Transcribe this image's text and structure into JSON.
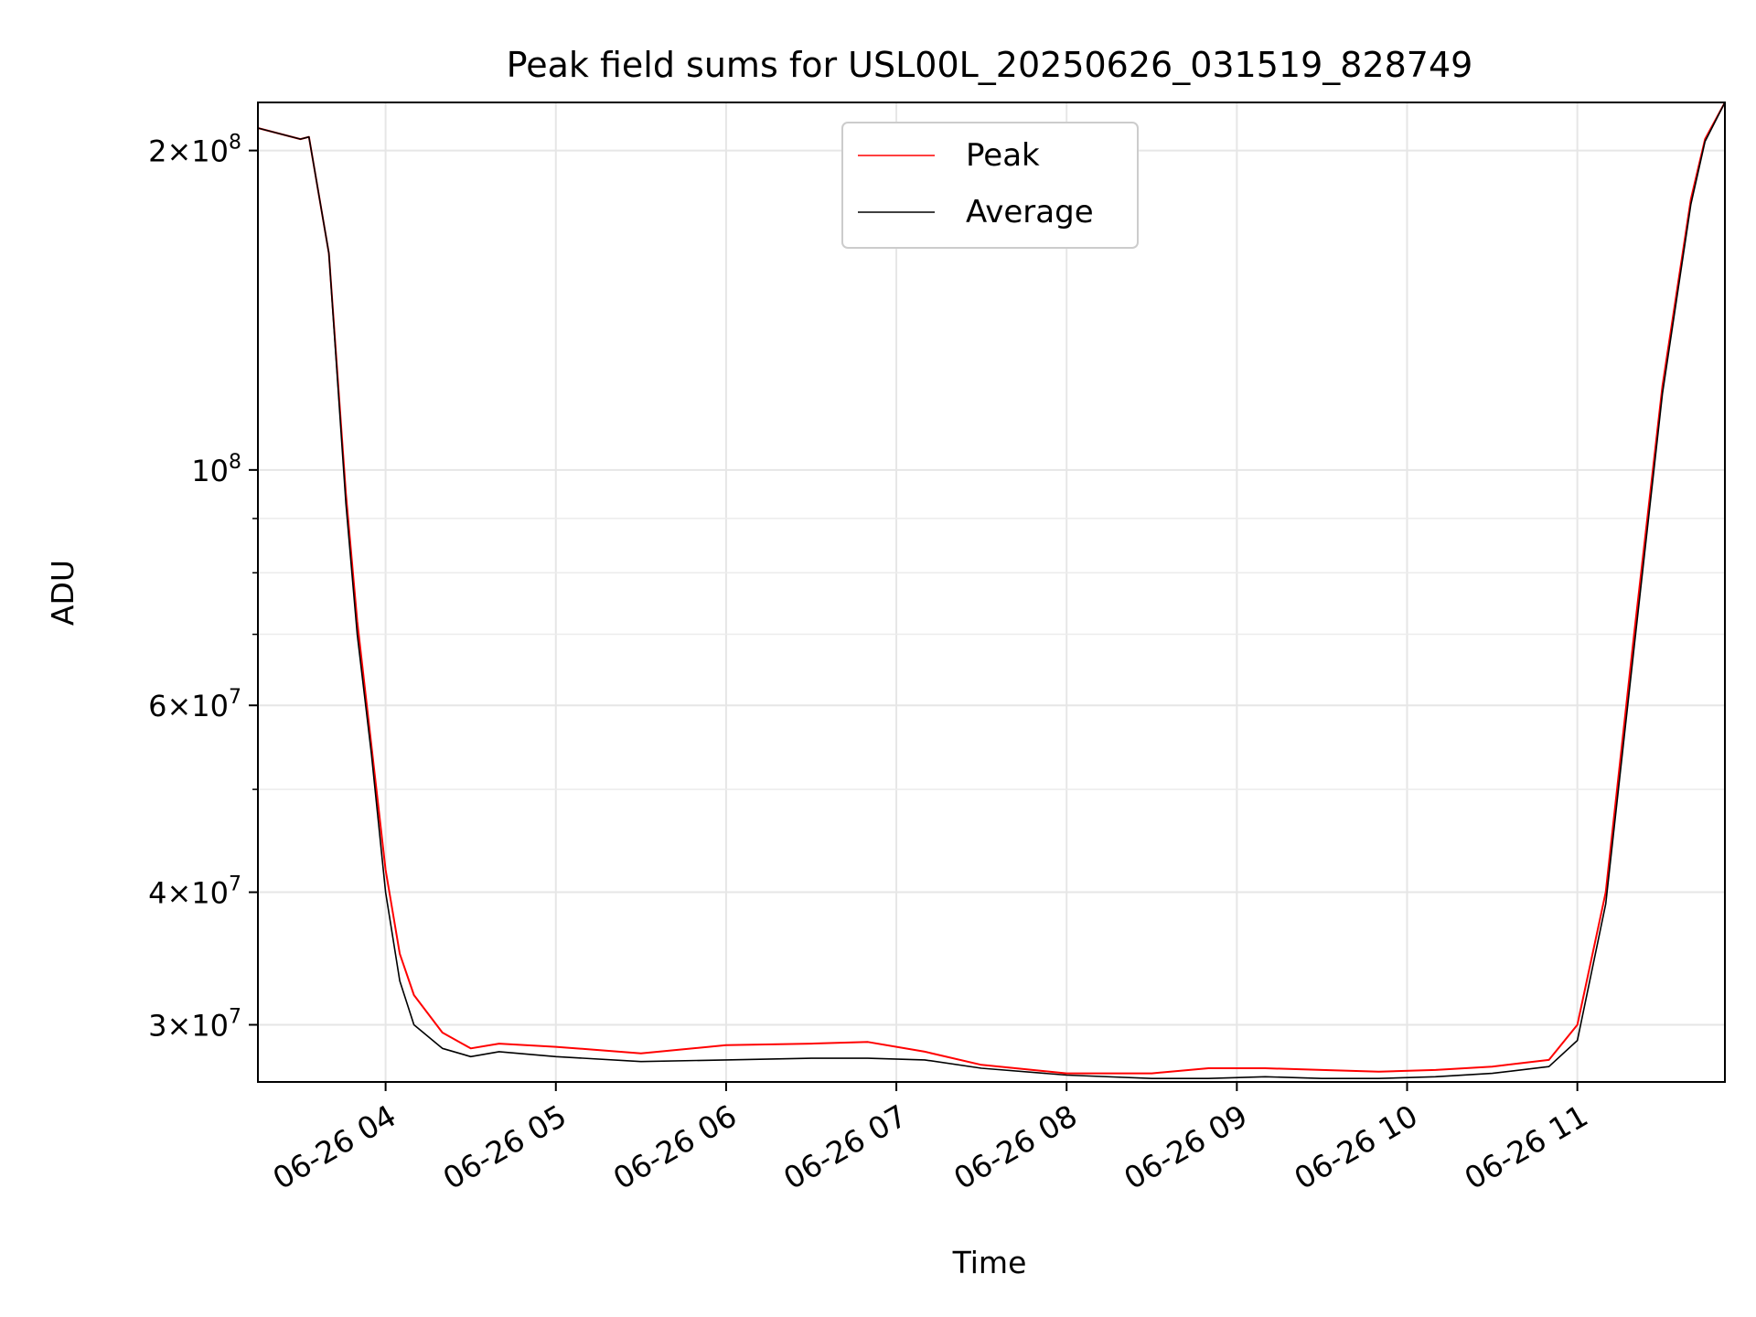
{
  "chart_data": {
    "type": "line",
    "title": "Peak field sums for USL00L_20250626_031519_828749",
    "xlabel": "Time",
    "ylabel": "ADU",
    "yscale": "log",
    "xlim": [
      "2025-06-26 03:15",
      "2025-06-26 11:52"
    ],
    "ylim": [
      26500000,
      222000000
    ],
    "x_ticks": [
      "06-26 04",
      "06-26 05",
      "06-26 06",
      "06-26 07",
      "06-26 08",
      "06-26 09",
      "06-26 10",
      "06-26 11"
    ],
    "y_ticks": [
      {
        "value": 200000000,
        "mantissa": "2×10",
        "exp": "8"
      },
      {
        "value": 100000000,
        "mantissa": "10",
        "exp": "8"
      },
      {
        "value": 60000000,
        "mantissa": "6×10",
        "exp": "7"
      },
      {
        "value": 40000000,
        "mantissa": "4×10",
        "exp": "7"
      },
      {
        "value": 30000000,
        "mantissa": "3×10",
        "exp": "7"
      }
    ],
    "grid": true,
    "legend_position": "top-center",
    "colors": {
      "Peak": "#ff0000",
      "Average": "#000000"
    },
    "series": [
      {
        "name": "Peak",
        "x": [
          "06-26 03:15",
          "06-26 03:30",
          "06-26 03:33",
          "06-26 03:40",
          "06-26 03:46",
          "06-26 03:50",
          "06-26 03:55",
          "06-26 04:00",
          "06-26 04:05",
          "06-26 04:10",
          "06-26 04:20",
          "06-26 04:30",
          "06-26 04:40",
          "06-26 05:00",
          "06-26 05:30",
          "06-26 06:00",
          "06-26 06:30",
          "06-26 06:50",
          "06-26 07:10",
          "06-26 07:30",
          "06-26 08:00",
          "06-26 08:30",
          "06-26 08:50",
          "06-26 09:10",
          "06-26 09:30",
          "06-26 09:50",
          "06-26 10:10",
          "06-26 10:30",
          "06-26 10:50",
          "06-26 11:00",
          "06-26 11:10",
          "06-26 11:20",
          "06-26 11:30",
          "06-26 11:40",
          "06-26 11:45",
          "06-26 11:52"
        ],
        "values": [
          210000000,
          205000000,
          206000000,
          160000000,
          95000000,
          72000000,
          55000000,
          42000000,
          35000000,
          32000000,
          29500000,
          28500000,
          28800000,
          28600000,
          28200000,
          28700000,
          28800000,
          28900000,
          28300000,
          27500000,
          27000000,
          27000000,
          27300000,
          27300000,
          27200000,
          27100000,
          27200000,
          27400000,
          27800000,
          30000000,
          40000000,
          70000000,
          120000000,
          180000000,
          205000000,
          222000000
        ]
      },
      {
        "name": "Average",
        "x": [
          "06-26 03:15",
          "06-26 03:30",
          "06-26 03:33",
          "06-26 03:40",
          "06-26 03:46",
          "06-26 03:50",
          "06-26 03:55",
          "06-26 04:00",
          "06-26 04:05",
          "06-26 04:10",
          "06-26 04:20",
          "06-26 04:30",
          "06-26 04:40",
          "06-26 05:00",
          "06-26 05:30",
          "06-26 06:00",
          "06-26 06:30",
          "06-26 06:50",
          "06-26 07:10",
          "06-26 07:30",
          "06-26 08:00",
          "06-26 08:30",
          "06-26 08:50",
          "06-26 09:10",
          "06-26 09:30",
          "06-26 09:50",
          "06-26 10:10",
          "06-26 10:30",
          "06-26 10:50",
          "06-26 11:00",
          "06-26 11:10",
          "06-26 11:20",
          "06-26 11:30",
          "06-26 11:40",
          "06-26 11:45",
          "06-26 11:52"
        ],
        "values": [
          210000000,
          205000000,
          206000000,
          160000000,
          93000000,
          70000000,
          54000000,
          40000000,
          33000000,
          30000000,
          28500000,
          28000000,
          28300000,
          28000000,
          27700000,
          27800000,
          27900000,
          27900000,
          27800000,
          27300000,
          26900000,
          26700000,
          26700000,
          26800000,
          26700000,
          26700000,
          26800000,
          27000000,
          27400000,
          29000000,
          39000000,
          68000000,
          118000000,
          178000000,
          204000000,
          222000000
        ]
      }
    ]
  }
}
